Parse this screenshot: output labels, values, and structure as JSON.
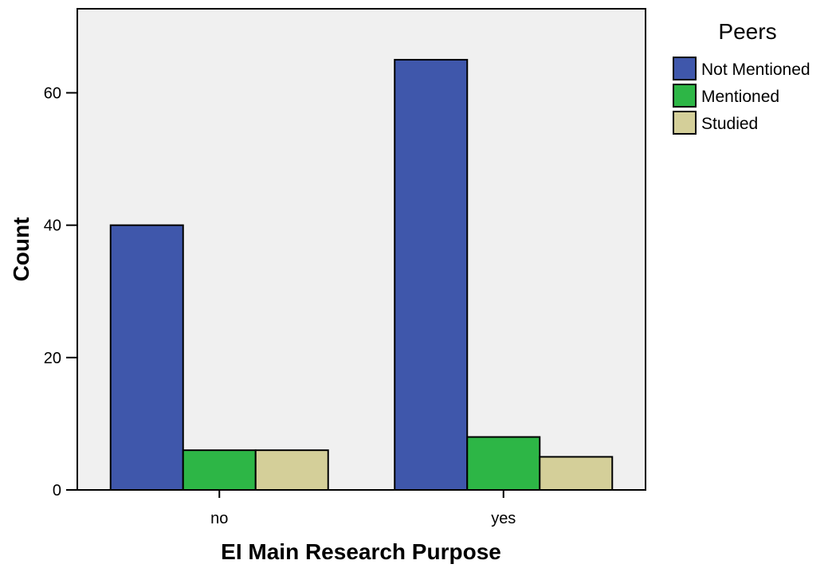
{
  "chart_data": {
    "type": "bar",
    "categories": [
      "no",
      "yes"
    ],
    "series": [
      {
        "name": "Not Mentioned",
        "values": [
          40,
          65
        ],
        "color": "#3f57ab"
      },
      {
        "name": "Mentioned",
        "values": [
          6,
          8
        ],
        "color": "#2db646"
      },
      {
        "name": "Studied",
        "values": [
          6,
          5
        ],
        "color": "#d4cf99"
      }
    ],
    "xlabel": "EI Main Research Purpose",
    "ylabel": "Count",
    "ylim": [
      0,
      72.7
    ],
    "yticks": [
      0,
      20,
      40,
      60
    ],
    "legend_title": "Peers",
    "legend_position": "right",
    "grid": false,
    "plot_background": "#f0f0f0"
  }
}
